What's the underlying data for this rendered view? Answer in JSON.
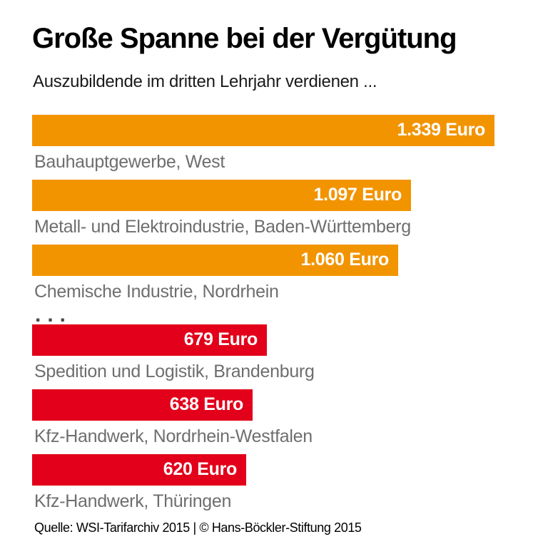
{
  "header": {
    "title": "Große Spanne bei der Vergütung",
    "subtitle": "Auszubildende im dritten Lehrjahr verdienen ..."
  },
  "chart_data": {
    "type": "bar",
    "orientation": "horizontal",
    "title": "Große Spanne bei der Vergütung",
    "subtitle": "Auszubildende im dritten Lehrjahr verdienen ...",
    "unit": "Euro",
    "xlim": [
      0,
      1339
    ],
    "scale_max": 1339,
    "grid": false,
    "legend": false,
    "categories": [
      "Bauhauptgewerbe, West",
      "Metall- und Elektroindustrie, Baden-Württemberg",
      "Chemische Industrie, Nordrhein",
      "Spedition und Logistik, Brandenburg",
      "Kfz-Handwerk, Nordrhein-Westfalen",
      "Kfz-Handwerk, Thüringen"
    ],
    "values": [
      1339,
      1097,
      1060,
      679,
      638,
      620
    ],
    "bars": [
      {
        "label": "Bauhauptgewerbe, West",
        "value": 1339,
        "value_label": "1.339 Euro",
        "color": "#f29400",
        "group": "high"
      },
      {
        "label": "Metall- und Elektroindustrie, Baden-Württemberg",
        "value": 1097,
        "value_label": "1.097 Euro",
        "color": "#f29400",
        "group": "high"
      },
      {
        "label": "Chemische Industrie, Nordrhein",
        "value": 1060,
        "value_label": "1.060 Euro",
        "color": "#f29400",
        "group": "high"
      },
      {
        "label": "Spedition und Logistik, Brandenburg",
        "value": 679,
        "value_label": "679 Euro",
        "color": "#e2001a",
        "group": "low"
      },
      {
        "label": "Kfz-Handwerk, Nordrhein-Westfalen",
        "value": 638,
        "value_label": "638 Euro",
        "color": "#e2001a",
        "group": "low"
      },
      {
        "label": "Kfz-Handwerk, Thüringen",
        "value": 620,
        "value_label": "620 Euro",
        "color": "#e2001a",
        "group": "low"
      }
    ],
    "separator": "...",
    "colors": {
      "high": "#f29400",
      "low": "#e2001a"
    }
  },
  "footer": {
    "source": "Quelle: WSI-Tarifarchiv 2015 | © Hans-Böckler-Stiftung 2015"
  }
}
